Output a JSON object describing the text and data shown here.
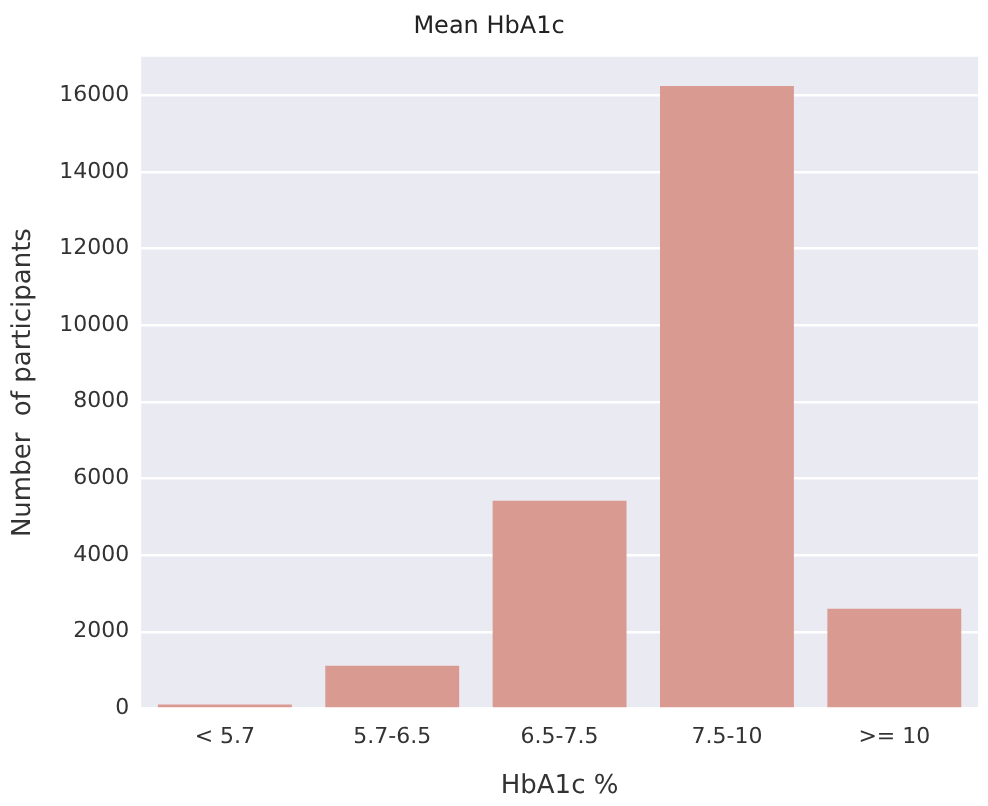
{
  "chart_data": {
    "type": "bar",
    "title": "Mean HbA1c",
    "xlabel": "HbA1c %",
    "ylabel": "Number  of participants",
    "categories": [
      "< 5.7",
      "5.7-6.5",
      "6.5-7.5",
      "7.5-10",
      ">= 10"
    ],
    "values": [
      100,
      1110,
      5420,
      16240,
      2600
    ],
    "color": "#d99a92",
    "ylim": [
      0,
      17000
    ],
    "yticks": [
      0,
      2000,
      4000,
      6000,
      8000,
      10000,
      12000,
      14000,
      16000
    ],
    "grid": "y"
  }
}
